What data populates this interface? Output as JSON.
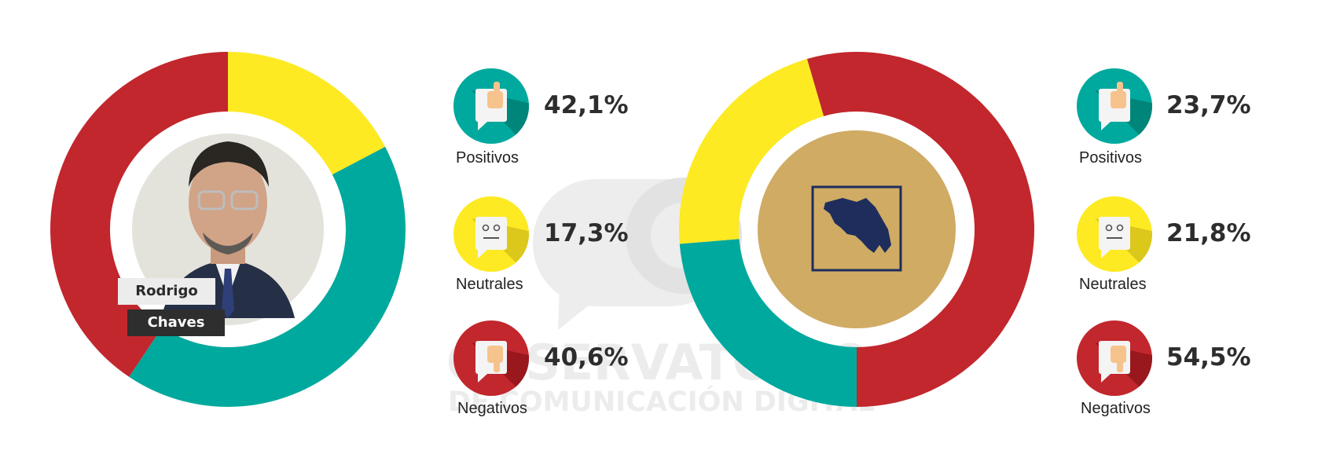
{
  "colors": {
    "positive": "#00a99d",
    "neutral": "#fdea22",
    "negative": "#c1272d",
    "emblem_bg": "#cfab64",
    "emblem_ink": "#1e2d5c",
    "watermark": "#ececec"
  },
  "watermark": {
    "line1": "OBSERVATORIO",
    "line2": "DE COMUNICACIÓN DIGITAL"
  },
  "chart_data": [
    {
      "type": "pie",
      "variant": "donut",
      "center_label": [
        "Rodrigo",
        "Chaves"
      ],
      "slices": [
        {
          "label": "Positivos",
          "value": 42.1,
          "value_label": "42,1%",
          "color": "#00a99d",
          "icon": "thumbs-up-icon"
        },
        {
          "label": "Neutrales",
          "value": 17.3,
          "value_label": "17,3%",
          "color": "#fdea22",
          "icon": "neutral-face-icon"
        },
        {
          "label": "Negativos",
          "value": 40.6,
          "value_label": "40,6%",
          "color": "#c1272d",
          "icon": "thumbs-down-icon"
        }
      ]
    },
    {
      "type": "pie",
      "variant": "donut",
      "center_icon": "costa-rica-map-icon",
      "slices": [
        {
          "label": "Positivos",
          "value": 23.7,
          "value_label": "23,7%",
          "color": "#00a99d",
          "icon": "thumbs-up-icon"
        },
        {
          "label": "Neutrales",
          "value": 21.8,
          "value_label": "21,8%",
          "color": "#fdea22",
          "icon": "neutral-face-icon"
        },
        {
          "label": "Negativos",
          "value": 54.5,
          "value_label": "54,5%",
          "color": "#c1272d",
          "icon": "thumbs-down-icon"
        }
      ]
    }
  ]
}
